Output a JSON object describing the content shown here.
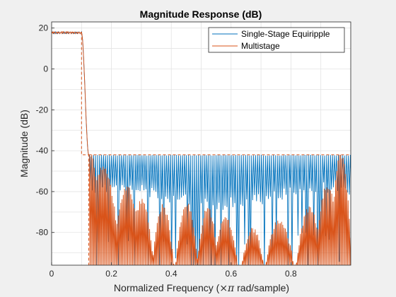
{
  "chart_data": {
    "type": "line",
    "title": "Magnitude Response (dB)",
    "xlabel_prefix": "Normalized Frequency  (",
    "xlabel_symbol": "×π",
    "xlabel_suffix": " rad/sample)",
    "ylabel": "Magnitude (dB)",
    "xlim": [
      0,
      1
    ],
    "ylim": [
      -96,
      23
    ],
    "x_ticks": [
      0,
      0.2,
      0.4,
      0.6,
      0.8
    ],
    "x_tick_labels": [
      "0",
      "0.2",
      "0.4",
      "0.6",
      "0.8"
    ],
    "y_ticks": [
      20,
      0,
      -20,
      -40,
      -60,
      -80
    ],
    "y_tick_labels": [
      "20",
      "0",
      "-20",
      "-40",
      "-60",
      "-80"
    ],
    "grid": true,
    "legend_position": "top-right",
    "colors": {
      "single_stage": "#0072BD",
      "multistage": "#D95319",
      "axes_bg": "#ffffff",
      "figure_bg": "#f0f0f0"
    },
    "series": [
      {
        "name": "Single-Stage Equiripple",
        "color": "#0072BD",
        "passband": {
          "x": [
            0,
            0.1
          ],
          "ripple_db": [
            17.2,
            18.2
          ]
        },
        "transition": {
          "x": [
            0.1,
            0.124
          ],
          "y": [
            17.5,
            -42
          ]
        },
        "stopband": {
          "x": [
            0.124,
            1.0
          ],
          "max_db": -42,
          "typical_min_db": -55,
          "null_db": -96
        }
      },
      {
        "name": "Multistage",
        "color": "#D95319",
        "passband": {
          "x": [
            0,
            0.1
          ],
          "ripple_db": [
            17.0,
            18.4
          ]
        },
        "transition": {
          "x": [
            0.1,
            0.124
          ],
          "y": [
            17.5,
            -42
          ]
        },
        "stopband": {
          "x": [
            0.124,
            1.0
          ],
          "max_db": -42,
          "lobe_centers": [
            0.12,
            0.245,
            0.31,
            0.38,
            0.44,
            0.55,
            0.64,
            0.76,
            0.93,
            0.97
          ]
        }
      }
    ]
  }
}
